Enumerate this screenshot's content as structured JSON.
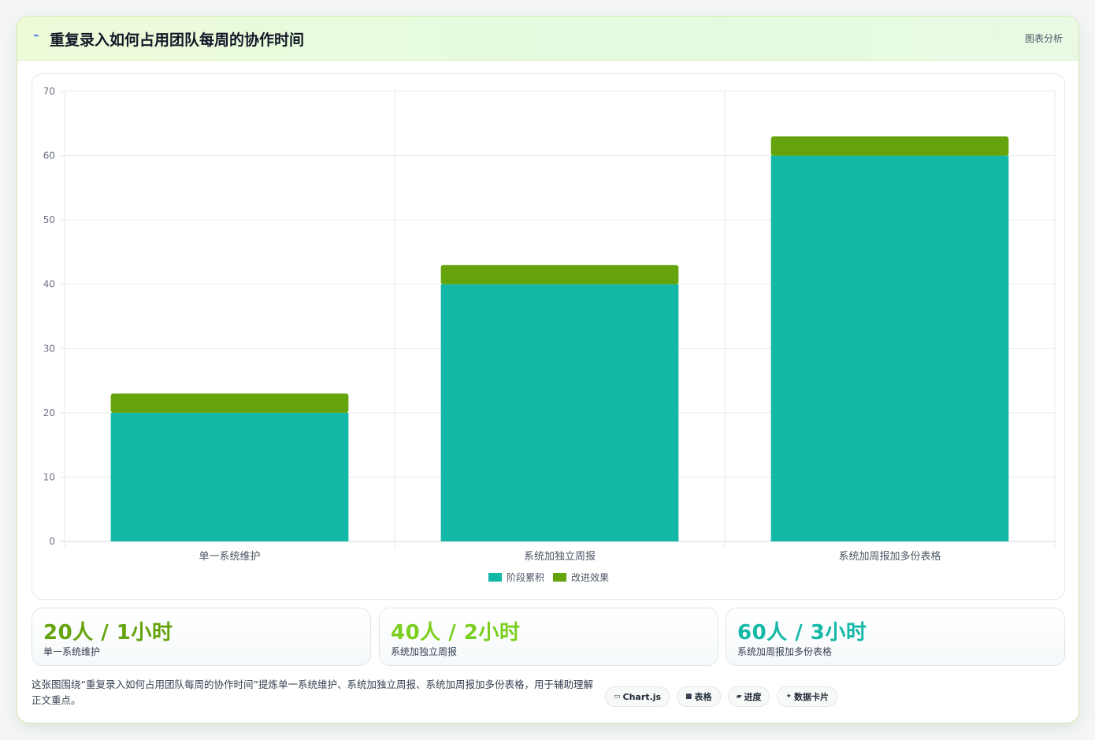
{
  "header": {
    "icon": "pulse-icon",
    "title": "重复录入如何占用团队每周的协作时间",
    "tag": "图表分析"
  },
  "chart_data": {
    "type": "bar",
    "stacked": true,
    "categories": [
      "单一系统维护",
      "系统加独立周报",
      "系统加周报加多份表格"
    ],
    "series": [
      {
        "name": "阶段累积",
        "values": [
          20,
          40,
          60
        ],
        "color": "#14b8a6"
      },
      {
        "name": "改进效果",
        "values": [
          3,
          3,
          3
        ],
        "color": "#65a30d"
      }
    ],
    "ylim": [
      0,
      70
    ],
    "yticks": [
      0,
      10,
      20,
      30,
      40,
      50,
      60,
      70
    ],
    "grid": true,
    "legend": "bottom"
  },
  "stats": [
    {
      "value": "20人 / 1小时",
      "label": "单一系统维护",
      "color": "#65a30d"
    },
    {
      "value": "40人 / 2小时",
      "label": "系统加独立周报",
      "color": "#7ccf1f"
    },
    {
      "value": "60人 / 3小时",
      "label": "系统加周报加多份表格",
      "color": "#14b8a6"
    }
  ],
  "note": "这张图围绕“重复录入如何占用团队每周的协作时间”提炼单一系统维护、系统加独立周报、系统加周报加多份表格，用于辅助理解正文重点。",
  "chips": [
    {
      "icon": "chart-icon",
      "label": "Chart.js"
    },
    {
      "icon": "table-icon",
      "label": "表格"
    },
    {
      "icon": "progress-icon",
      "label": "进度"
    },
    {
      "icon": "sparkle-icon",
      "label": "数据卡片"
    }
  ]
}
